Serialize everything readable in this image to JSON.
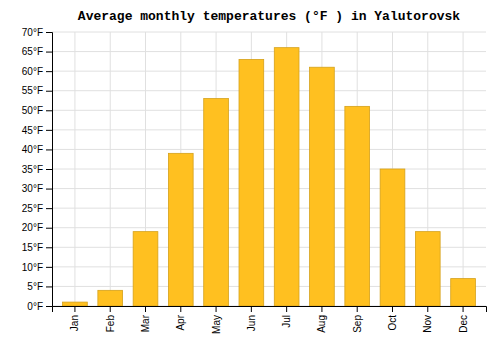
{
  "chart_data": {
    "type": "bar",
    "title": "Average monthly temperatures (°F ) in Yalutorovsk",
    "categories": [
      "Jan",
      "Feb",
      "Mar",
      "Apr",
      "May",
      "Jun",
      "Jul",
      "Aug",
      "Sep",
      "Oct",
      "Nov",
      "Dec"
    ],
    "values": [
      1,
      4,
      19,
      39,
      53,
      63,
      66,
      61,
      51,
      35,
      19,
      7
    ],
    "color": "#FFC020",
    "ylim": [
      0,
      70
    ],
    "yticks": [
      {
        "value": 0,
        "label": "0°F"
      },
      {
        "value": 5,
        "label": "5°F"
      },
      {
        "value": 10,
        "label": "10°F"
      },
      {
        "value": 15,
        "label": "15°F"
      },
      {
        "value": 20,
        "label": "20°F"
      },
      {
        "value": 25,
        "label": "25°F"
      },
      {
        "value": 30,
        "label": "30°F"
      },
      {
        "value": 35,
        "label": "35°F"
      },
      {
        "value": 40,
        "label": "40°F"
      },
      {
        "value": 45,
        "label": "45°F"
      },
      {
        "value": 50,
        "label": "50°F"
      },
      {
        "value": 55,
        "label": "55°F"
      },
      {
        "value": 60,
        "label": "60°F"
      },
      {
        "value": 65,
        "label": "65°F"
      },
      {
        "value": 70,
        "label": "70°F"
      }
    ],
    "grid": true
  }
}
